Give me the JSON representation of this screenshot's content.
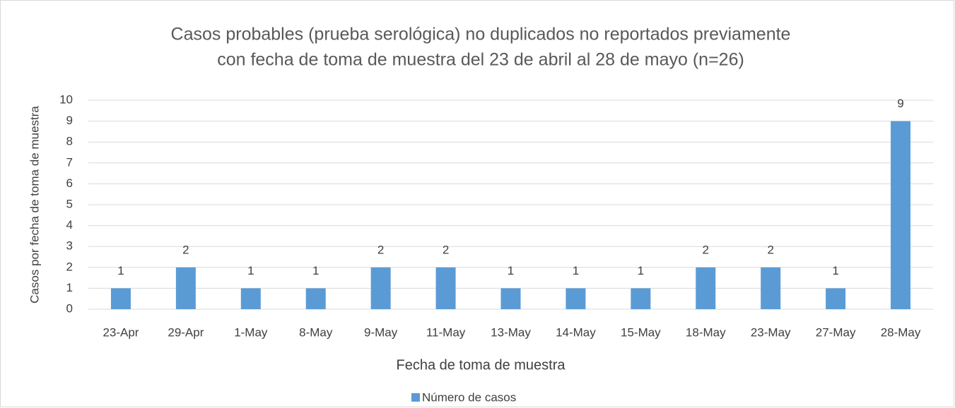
{
  "chart_data": {
    "type": "bar",
    "title": [
      "Casos probables (prueba serológica) no duplicados no reportados previamente",
      "con fecha de toma de muestra del 23 de abril al 28 de mayo (n=26)"
    ],
    "x_label": "Fecha de toma de muestra",
    "y_label": "Casos por fecha de toma de muestra",
    "categories": [
      "23-Apr",
      "29-Apr",
      "1-May",
      "8-May",
      "9-May",
      "11-May",
      "13-May",
      "14-May",
      "15-May",
      "18-May",
      "23-May",
      "27-May",
      "28-May"
    ],
    "series": [
      {
        "name": "Número de casos",
        "color": "#5b9bd5",
        "values": [
          1,
          2,
          1,
          1,
          2,
          2,
          1,
          1,
          1,
          2,
          2,
          1,
          9
        ]
      }
    ],
    "ylim": [
      0,
      10
    ],
    "yticks": [
      0,
      1,
      2,
      3,
      4,
      5,
      6,
      7,
      8,
      9,
      10
    ],
    "grid": true,
    "data_labels": true,
    "legend": "bottom"
  }
}
